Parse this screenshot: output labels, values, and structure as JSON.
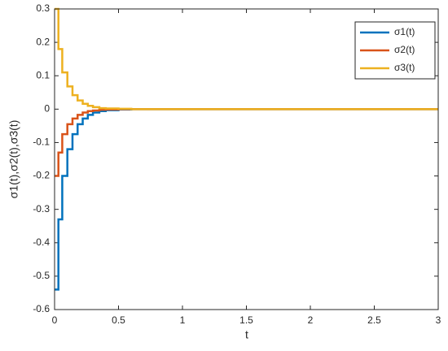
{
  "chart_data": {
    "type": "line",
    "xlabel": "t",
    "ylabel": "σ1(t),σ2(t),σ3(t)",
    "x": [
      0,
      0.03,
      0.03,
      0.06,
      0.06,
      0.1,
      0.1,
      0.14,
      0.14,
      0.18,
      0.18,
      0.22,
      0.22,
      0.26,
      0.26,
      0.3,
      0.3,
      0.35,
      0.35,
      0.4,
      0.4,
      0.5,
      0.5,
      0.6,
      0.6,
      3
    ],
    "series": [
      {
        "name": "σ1(t)",
        "color": "#0072BD",
        "values": [
          -0.54,
          -0.54,
          -0.33,
          -0.33,
          -0.2,
          -0.2,
          -0.12,
          -0.12,
          -0.075,
          -0.075,
          -0.045,
          -0.045,
          -0.028,
          -0.028,
          -0.017,
          -0.017,
          -0.01,
          -0.01,
          -0.006,
          -0.006,
          -0.003,
          -0.003,
          -0.001,
          -0.001,
          0,
          0
        ]
      },
      {
        "name": "σ2(t)",
        "color": "#D95319",
        "values": [
          -0.2,
          -0.2,
          -0.13,
          -0.13,
          -0.075,
          -0.075,
          -0.045,
          -0.045,
          -0.028,
          -0.028,
          -0.017,
          -0.017,
          -0.01,
          -0.01,
          -0.006,
          -0.006,
          -0.004,
          -0.004,
          -0.002,
          -0.002,
          -0.001,
          -0.001,
          0,
          0,
          0,
          0
        ]
      },
      {
        "name": "σ3(t)",
        "color": "#EDB120",
        "values": [
          0.3,
          0.3,
          0.18,
          0.18,
          0.11,
          0.11,
          0.068,
          0.068,
          0.042,
          0.042,
          0.026,
          0.026,
          0.016,
          0.016,
          0.01,
          0.01,
          0.006,
          0.006,
          0.003,
          0.003,
          0.002,
          0.002,
          0.001,
          0.001,
          0,
          0
        ]
      }
    ],
    "xlim": [
      0,
      3
    ],
    "xticks": [
      0,
      0.5,
      1,
      1.5,
      2,
      2.5,
      3
    ],
    "ylim": [
      -0.6,
      0.3
    ],
    "yticks": [
      -0.6,
      -0.5,
      -0.4,
      -0.3,
      -0.2,
      -0.1,
      0,
      0.1,
      0.2,
      0.3
    ],
    "grid": false,
    "legend": "northeast"
  }
}
